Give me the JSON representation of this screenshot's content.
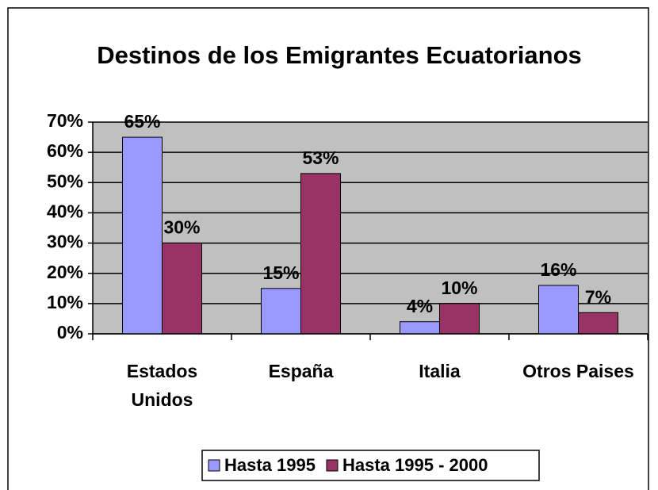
{
  "chart_data": {
    "type": "bar",
    "title": "Destinos de los Emigrantes Ecuatorianos",
    "categories": [
      "Estados Unidos",
      "España",
      "Italia",
      "Otros Paises"
    ],
    "series": [
      {
        "name": "Hasta 1995",
        "color": "#9999ff",
        "values": [
          65,
          15,
          4,
          16
        ],
        "value_labels": [
          "65%",
          "15%",
          "4%",
          "16%"
        ]
      },
      {
        "name": "Hasta 1995 - 2000",
        "color": "#993366",
        "values": [
          30,
          53,
          10,
          7
        ],
        "value_labels": [
          "30%",
          "53%",
          "10%",
          "7%"
        ]
      }
    ],
    "ylim": [
      0,
      70
    ],
    "yticks": [
      {
        "value": 0,
        "label": "0%"
      },
      {
        "value": 10,
        "label": "10%"
      },
      {
        "value": 20,
        "label": "20%"
      },
      {
        "value": 30,
        "label": "30%"
      },
      {
        "value": 40,
        "label": "40%"
      },
      {
        "value": 50,
        "label": "50%"
      },
      {
        "value": 60,
        "label": "60%"
      },
      {
        "value": 70,
        "label": "70%"
      }
    ],
    "grid": true,
    "legend": "bottom"
  }
}
